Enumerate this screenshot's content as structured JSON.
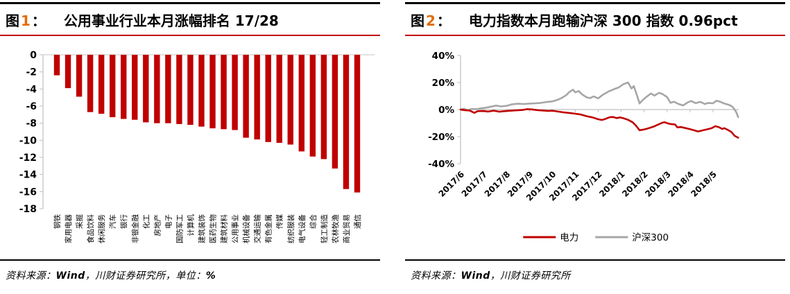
{
  "accent": {
    "bar_red": "#C00000",
    "line_gray": "#A6A6A6",
    "number_orange": "#E36C09",
    "axis_gray": "#BFBFBF",
    "zero_line_gray": "#D9D9D9"
  },
  "fig1": {
    "label_tu": "图",
    "label_num": "1",
    "label_colon": "：",
    "title": "公用事业行业本月涨幅排名 17/28",
    "source": {
      "prefix": "资料来源：",
      "wind": "Wind",
      "middle": "，川财证券研究所，单位：",
      "unit": "%"
    },
    "chart_data": {
      "type": "bar",
      "title": "公用事业行业本月涨幅排名 17/28",
      "xlabel": "",
      "ylabel": "",
      "unit": "%",
      "ylim": [
        -18,
        0
      ],
      "yticks": [
        0,
        -2,
        -4,
        -6,
        -8,
        -10,
        -12,
        -14,
        -16,
        -18
      ],
      "grid": false,
      "bar_color": "#C00000",
      "categories": [
        "钢铁",
        "家用电器",
        "采掘",
        "食品饮料",
        "休闲服务",
        "汽车",
        "银行",
        "非银金融",
        "化工",
        "房地产",
        "电子",
        "国防军工",
        "计算机",
        "建筑装饰",
        "医药生物",
        "建筑材料",
        "公用事业",
        "机械设备",
        "交通运输",
        "有色金属",
        "传媒",
        "纺织服装",
        "电气设备",
        "综合",
        "轻工制造",
        "农林牧渔",
        "商业贸易",
        "通信"
      ],
      "values": [
        -2.4,
        -3.9,
        -4.9,
        -6.7,
        -6.9,
        -7.3,
        -7.5,
        -7.6,
        -7.9,
        -8.0,
        -8.0,
        -8.1,
        -8.2,
        -8.4,
        -8.6,
        -8.7,
        -8.8,
        -9.7,
        -9.9,
        -10.2,
        -10.3,
        -10.5,
        -11.3,
        -11.9,
        -12.2,
        -13.3,
        -15.7,
        -16.1
      ]
    }
  },
  "fig2": {
    "label_tu": "图",
    "label_num": "2",
    "label_colon": "：",
    "title": "电力指数本月跑输沪深 300 指数 0.96pct",
    "source": {
      "prefix": "资料来源：",
      "wind": "Wind",
      "middle": "，川财证券研究所"
    },
    "chart_data": {
      "type": "line",
      "title": "电力指数本月跑输沪深 300 指数 0.96pct",
      "ylim": [
        -40,
        40
      ],
      "yticks": [
        {
          "v": 40,
          "label": "40%"
        },
        {
          "v": 20,
          "label": "20%"
        },
        {
          "v": 0,
          "label": "0%"
        },
        {
          "v": -20,
          "label": "-20%"
        },
        {
          "v": -40,
          "label": "-40%"
        }
      ],
      "x_labels": [
        "2017/6",
        "2017/7",
        "2017/8",
        "2017/9",
        "2017/10",
        "2017/11",
        "2017/12",
        "2018/1",
        "2018/2",
        "2018/3",
        "2018/4",
        "2018/5"
      ],
      "x_range_months": 12,
      "legend_position": "bottom",
      "series": [
        {
          "name": "沪深300",
          "color": "#A6A6A6",
          "points": [
            [
              0,
              0
            ],
            [
              0.15,
              0.6
            ],
            [
              0.3,
              -0.5
            ],
            [
              0.5,
              0.5
            ],
            [
              0.7,
              0.3
            ],
            [
              0.9,
              0.9
            ],
            [
              1.1,
              1.4
            ],
            [
              1.35,
              2.2
            ],
            [
              1.55,
              2.9
            ],
            [
              1.75,
              2.3
            ],
            [
              2.0,
              2.7
            ],
            [
              2.25,
              3.9
            ],
            [
              2.5,
              4.3
            ],
            [
              2.75,
              4.1
            ],
            [
              3.0,
              4.4
            ],
            [
              3.25,
              4.6
            ],
            [
              3.5,
              4.9
            ],
            [
              3.75,
              5.6
            ],
            [
              4.0,
              6.0
            ],
            [
              4.2,
              7.0
            ],
            [
              4.4,
              8.5
            ],
            [
              4.6,
              10.6
            ],
            [
              4.75,
              13.1
            ],
            [
              4.9,
              14.7
            ],
            [
              5.0,
              12.7
            ],
            [
              5.15,
              13.7
            ],
            [
              5.3,
              11.2
            ],
            [
              5.5,
              9.0
            ],
            [
              5.65,
              8.5
            ],
            [
              5.8,
              9.7
            ],
            [
              6.0,
              8.3
            ],
            [
              6.2,
              10.9
            ],
            [
              6.45,
              13.4
            ],
            [
              6.7,
              15.2
            ],
            [
              6.9,
              16.4
            ],
            [
              7.1,
              18.8
            ],
            [
              7.3,
              20.0
            ],
            [
              7.45,
              15.6
            ],
            [
              7.55,
              17.4
            ],
            [
              7.7,
              10.0
            ],
            [
              7.8,
              4.5
            ],
            [
              7.95,
              7.2
            ],
            [
              8.1,
              9.4
            ],
            [
              8.3,
              11.9
            ],
            [
              8.45,
              10.3
            ],
            [
              8.65,
              12.4
            ],
            [
              8.8,
              11.5
            ],
            [
              9.0,
              9.2
            ],
            [
              9.15,
              5.0
            ],
            [
              9.3,
              5.8
            ],
            [
              9.5,
              4.1
            ],
            [
              9.7,
              3.1
            ],
            [
              9.9,
              5.3
            ],
            [
              10.05,
              6.3
            ],
            [
              10.25,
              4.7
            ],
            [
              10.45,
              5.7
            ],
            [
              10.65,
              4.1
            ],
            [
              10.8,
              4.9
            ],
            [
              11.0,
              4.6
            ],
            [
              11.15,
              6.5
            ],
            [
              11.3,
              5.9
            ],
            [
              11.5,
              4.4
            ],
            [
              11.7,
              3.5
            ],
            [
              11.85,
              2.1
            ],
            [
              12.0,
              -1.4
            ],
            [
              12.1,
              -5.6
            ]
          ]
        },
        {
          "name": "电力",
          "color": "#C00000",
          "points": [
            [
              0,
              0
            ],
            [
              0.15,
              -0.4
            ],
            [
              0.4,
              -0.7
            ],
            [
              0.6,
              -2.4
            ],
            [
              0.75,
              -1.2
            ],
            [
              1.0,
              -1.1
            ],
            [
              1.2,
              -1.5
            ],
            [
              1.45,
              -0.8
            ],
            [
              1.7,
              -1.6
            ],
            [
              1.9,
              -1.2
            ],
            [
              2.1,
              -0.9
            ],
            [
              2.4,
              -0.6
            ],
            [
              2.7,
              -0.3
            ],
            [
              2.9,
              0.3
            ],
            [
              3.1,
              0.1
            ],
            [
              3.35,
              -0.4
            ],
            [
              3.6,
              -0.7
            ],
            [
              3.85,
              -1.0
            ],
            [
              4.0,
              -0.8
            ],
            [
              4.25,
              -1.5
            ],
            [
              4.5,
              -2.1
            ],
            [
              4.75,
              -2.5
            ],
            [
              5.0,
              -3.1
            ],
            [
              5.25,
              -3.7
            ],
            [
              5.5,
              -4.9
            ],
            [
              5.75,
              -5.8
            ],
            [
              6.0,
              -7.2
            ],
            [
              6.15,
              -7.7
            ],
            [
              6.3,
              -7.0
            ],
            [
              6.5,
              -5.7
            ],
            [
              6.65,
              -5.5
            ],
            [
              6.8,
              -6.3
            ],
            [
              6.95,
              -5.8
            ],
            [
              7.1,
              -6.4
            ],
            [
              7.3,
              -7.6
            ],
            [
              7.5,
              -9.4
            ],
            [
              7.65,
              -12.0
            ],
            [
              7.8,
              -15.3
            ],
            [
              8.0,
              -14.7
            ],
            [
              8.2,
              -13.8
            ],
            [
              8.4,
              -12.7
            ],
            [
              8.6,
              -11.2
            ],
            [
              8.8,
              -9.7
            ],
            [
              8.9,
              -9.4
            ],
            [
              9.05,
              -10.3
            ],
            [
              9.2,
              -10.8
            ],
            [
              9.35,
              -11.0
            ],
            [
              9.45,
              -13.2
            ],
            [
              9.6,
              -12.9
            ],
            [
              9.75,
              -13.5
            ],
            [
              9.95,
              -14.3
            ],
            [
              10.15,
              -15.2
            ],
            [
              10.35,
              -16.2
            ],
            [
              10.55,
              -15.4
            ],
            [
              10.75,
              -14.6
            ],
            [
              10.95,
              -13.7
            ],
            [
              11.1,
              -12.3
            ],
            [
              11.25,
              -13.0
            ],
            [
              11.4,
              -14.3
            ],
            [
              11.5,
              -13.8
            ],
            [
              11.65,
              -15.1
            ],
            [
              11.8,
              -16.5
            ],
            [
              11.95,
              -19.5
            ],
            [
              12.1,
              -20.8
            ]
          ]
        }
      ],
      "legend": [
        "电力",
        "沪深300"
      ]
    }
  }
}
